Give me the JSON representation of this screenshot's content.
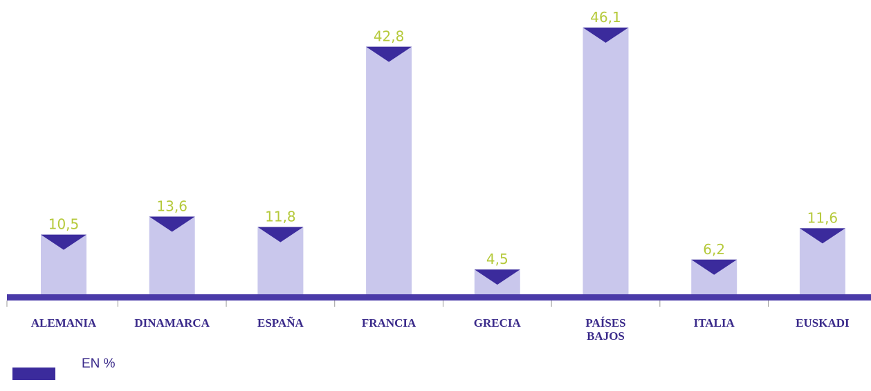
{
  "chart_data": {
    "type": "bar",
    "categories": [
      "ALEMANIA",
      "DINAMARCA",
      "ESPAÑA",
      "FRANCIA",
      "GRECIA",
      "PAÍSES BAJOS",
      "ITALIA",
      "EUSKADI"
    ],
    "values": [
      10.5,
      13.6,
      11.8,
      42.8,
      4.5,
      46.1,
      6.2,
      11.6
    ],
    "value_labels": [
      "10,5",
      "13,6",
      "11,8",
      "42,8",
      "4,5",
      "46,1",
      "6,2",
      "11,6"
    ],
    "color": "#c9c7ec",
    "marker_color": "#3b2b9c",
    "label_color": "#b5c93a",
    "legend": "EN %"
  }
}
